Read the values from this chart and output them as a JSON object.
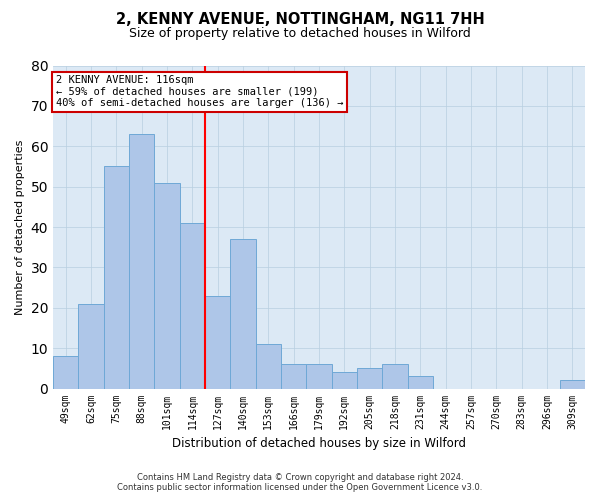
{
  "title": "2, KENNY AVENUE, NOTTINGHAM, NG11 7HH",
  "subtitle": "Size of property relative to detached houses in Wilford",
  "xlabel": "Distribution of detached houses by size in Wilford",
  "ylabel": "Number of detached properties",
  "categories": [
    "49sqm",
    "62sqm",
    "75sqm",
    "88sqm",
    "101sqm",
    "114sqm",
    "127sqm",
    "140sqm",
    "153sqm",
    "166sqm",
    "179sqm",
    "192sqm",
    "205sqm",
    "218sqm",
    "231sqm",
    "244sqm",
    "257sqm",
    "270sqm",
    "283sqm",
    "296sqm",
    "309sqm"
  ],
  "values": [
    8,
    21,
    55,
    63,
    51,
    41,
    23,
    37,
    11,
    6,
    6,
    4,
    5,
    6,
    3,
    0,
    0,
    0,
    0,
    0,
    2
  ],
  "bar_color": "#aec6e8",
  "bar_edgecolor": "#6fa8d6",
  "redline_x": 5.5,
  "annotation_line1": "2 KENNY AVENUE: 116sqm",
  "annotation_line2": "← 59% of detached houses are smaller (199)",
  "annotation_line3": "40% of semi-detached houses are larger (136) →",
  "annotation_box_color": "#ffffff",
  "annotation_box_edgecolor": "#cc0000",
  "footer_line1": "Contains HM Land Registry data © Crown copyright and database right 2024.",
  "footer_line2": "Contains public sector information licensed under the Open Government Licence v3.0.",
  "plot_bg_color": "#dce9f5",
  "ylim": [
    0,
    80
  ],
  "yticks": [
    0,
    10,
    20,
    30,
    40,
    50,
    60,
    70,
    80
  ],
  "title_fontsize": 10.5,
  "subtitle_fontsize": 9,
  "ylabel_fontsize": 8,
  "xlabel_fontsize": 8.5,
  "tick_fontsize": 7,
  "annot_fontsize": 7.5,
  "footer_fontsize": 6
}
